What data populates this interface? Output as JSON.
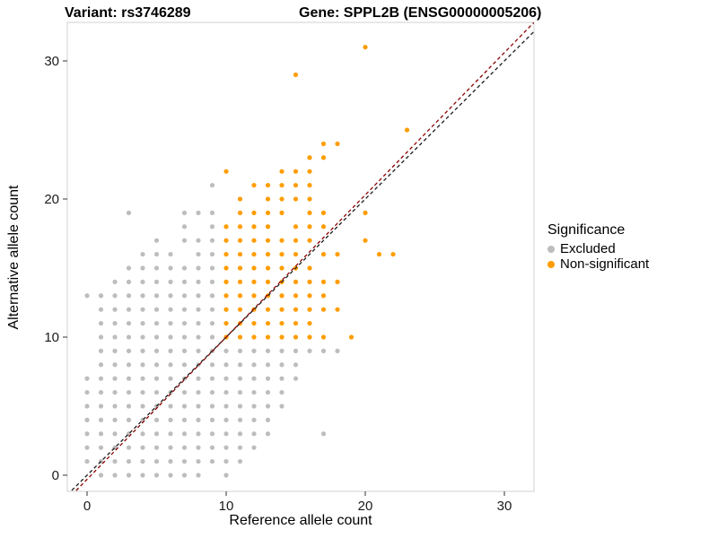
{
  "chart_data": {
    "type": "scatter",
    "title_left": "Variant: rs3746289",
    "title_right": "Gene: SPPL2B (ENSG00000005206)",
    "xlabel": "Reference allele count",
    "ylabel": "Alternative allele count",
    "xlim": [
      -1.42,
      32.13
    ],
    "ylim": [
      -1.17,
      32.79
    ],
    "x_ticks": [
      0,
      10,
      20,
      30
    ],
    "y_ticks": [
      0,
      10,
      20,
      30
    ],
    "grid": false,
    "legend_title": "Significance",
    "legend_position": "right",
    "panel_border_color": "#d0d0d0",
    "point_radius": 2.6,
    "series": [
      {
        "name": "Excluded",
        "color": "#BDBDBD",
        "points": [
          [
            1,
            0
          ],
          [
            2,
            0
          ],
          [
            3,
            0
          ],
          [
            4,
            0
          ],
          [
            5,
            0
          ],
          [
            6,
            0
          ],
          [
            7,
            0
          ],
          [
            8,
            0
          ],
          [
            10,
            0
          ],
          [
            0,
            1
          ],
          [
            1,
            1
          ],
          [
            2,
            1
          ],
          [
            3,
            1
          ],
          [
            4,
            1
          ],
          [
            5,
            1
          ],
          [
            6,
            1
          ],
          [
            7,
            1
          ],
          [
            8,
            1
          ],
          [
            9,
            1
          ],
          [
            10,
            1
          ],
          [
            11,
            1
          ],
          [
            0,
            2
          ],
          [
            1,
            2
          ],
          [
            2,
            2
          ],
          [
            3,
            2
          ],
          [
            4,
            2
          ],
          [
            5,
            2
          ],
          [
            6,
            2
          ],
          [
            7,
            2
          ],
          [
            8,
            2
          ],
          [
            9,
            2
          ],
          [
            10,
            2
          ],
          [
            11,
            2
          ],
          [
            12,
            2
          ],
          [
            0,
            3
          ],
          [
            1,
            3
          ],
          [
            2,
            3
          ],
          [
            3,
            3
          ],
          [
            4,
            3
          ],
          [
            5,
            3
          ],
          [
            6,
            3
          ],
          [
            7,
            3
          ],
          [
            8,
            3
          ],
          [
            9,
            3
          ],
          [
            10,
            3
          ],
          [
            11,
            3
          ],
          [
            12,
            3
          ],
          [
            13,
            3
          ],
          [
            17,
            3
          ],
          [
            0,
            4
          ],
          [
            1,
            4
          ],
          [
            2,
            4
          ],
          [
            3,
            4
          ],
          [
            4,
            4
          ],
          [
            5,
            4
          ],
          [
            6,
            4
          ],
          [
            7,
            4
          ],
          [
            8,
            4
          ],
          [
            9,
            4
          ],
          [
            10,
            4
          ],
          [
            11,
            4
          ],
          [
            12,
            4
          ],
          [
            13,
            4
          ],
          [
            0,
            5
          ],
          [
            1,
            5
          ],
          [
            2,
            5
          ],
          [
            3,
            5
          ],
          [
            4,
            5
          ],
          [
            5,
            5
          ],
          [
            6,
            5
          ],
          [
            7,
            5
          ],
          [
            8,
            5
          ],
          [
            9,
            5
          ],
          [
            10,
            5
          ],
          [
            11,
            5
          ],
          [
            12,
            5
          ],
          [
            13,
            5
          ],
          [
            14,
            5
          ],
          [
            0,
            6
          ],
          [
            1,
            6
          ],
          [
            2,
            6
          ],
          [
            3,
            6
          ],
          [
            4,
            6
          ],
          [
            5,
            6
          ],
          [
            6,
            6
          ],
          [
            7,
            6
          ],
          [
            8,
            6
          ],
          [
            9,
            6
          ],
          [
            10,
            6
          ],
          [
            11,
            6
          ],
          [
            12,
            6
          ],
          [
            13,
            6
          ],
          [
            14,
            6
          ],
          [
            0,
            7
          ],
          [
            1,
            7
          ],
          [
            2,
            7
          ],
          [
            3,
            7
          ],
          [
            4,
            7
          ],
          [
            5,
            7
          ],
          [
            6,
            7
          ],
          [
            7,
            7
          ],
          [
            8,
            7
          ],
          [
            9,
            7
          ],
          [
            10,
            7
          ],
          [
            11,
            7
          ],
          [
            12,
            7
          ],
          [
            13,
            7
          ],
          [
            14,
            7
          ],
          [
            15,
            7
          ],
          [
            1,
            8
          ],
          [
            2,
            8
          ],
          [
            3,
            8
          ],
          [
            4,
            8
          ],
          [
            5,
            8
          ],
          [
            6,
            8
          ],
          [
            7,
            8
          ],
          [
            8,
            8
          ],
          [
            9,
            8
          ],
          [
            10,
            8
          ],
          [
            11,
            8
          ],
          [
            12,
            8
          ],
          [
            13,
            8
          ],
          [
            14,
            8
          ],
          [
            15,
            8
          ],
          [
            1,
            9
          ],
          [
            2,
            9
          ],
          [
            3,
            9
          ],
          [
            4,
            9
          ],
          [
            5,
            9
          ],
          [
            6,
            9
          ],
          [
            7,
            9
          ],
          [
            8,
            9
          ],
          [
            9,
            9
          ],
          [
            10,
            9
          ],
          [
            11,
            9
          ],
          [
            12,
            9
          ],
          [
            13,
            9
          ],
          [
            14,
            9
          ],
          [
            15,
            9
          ],
          [
            16,
            9
          ],
          [
            17,
            9
          ],
          [
            18,
            9
          ],
          [
            1,
            10
          ],
          [
            2,
            10
          ],
          [
            3,
            10
          ],
          [
            4,
            10
          ],
          [
            5,
            10
          ],
          [
            6,
            10
          ],
          [
            7,
            10
          ],
          [
            8,
            10
          ],
          [
            9,
            10
          ],
          [
            1,
            11
          ],
          [
            2,
            11
          ],
          [
            3,
            11
          ],
          [
            4,
            11
          ],
          [
            5,
            11
          ],
          [
            6,
            11
          ],
          [
            7,
            11
          ],
          [
            8,
            11
          ],
          [
            9,
            11
          ],
          [
            1,
            12
          ],
          [
            2,
            12
          ],
          [
            3,
            12
          ],
          [
            4,
            12
          ],
          [
            5,
            12
          ],
          [
            6,
            12
          ],
          [
            7,
            12
          ],
          [
            8,
            12
          ],
          [
            9,
            12
          ],
          [
            0,
            13
          ],
          [
            1,
            13
          ],
          [
            2,
            13
          ],
          [
            3,
            13
          ],
          [
            4,
            13
          ],
          [
            5,
            13
          ],
          [
            6,
            13
          ],
          [
            7,
            13
          ],
          [
            8,
            13
          ],
          [
            9,
            13
          ],
          [
            2,
            14
          ],
          [
            3,
            14
          ],
          [
            4,
            14
          ],
          [
            5,
            14
          ],
          [
            6,
            14
          ],
          [
            7,
            14
          ],
          [
            8,
            14
          ],
          [
            9,
            14
          ],
          [
            3,
            15
          ],
          [
            4,
            15
          ],
          [
            5,
            15
          ],
          [
            6,
            15
          ],
          [
            7,
            15
          ],
          [
            8,
            15
          ],
          [
            9,
            15
          ],
          [
            4,
            16
          ],
          [
            5,
            16
          ],
          [
            6,
            16
          ],
          [
            8,
            16
          ],
          [
            9,
            16
          ],
          [
            5,
            17
          ],
          [
            7,
            17
          ],
          [
            8,
            17
          ],
          [
            9,
            17
          ],
          [
            7,
            18
          ],
          [
            9,
            18
          ],
          [
            3,
            19
          ],
          [
            7,
            19
          ],
          [
            8,
            19
          ],
          [
            9,
            19
          ],
          [
            9,
            21
          ]
        ]
      },
      {
        "name": "Non-significant",
        "color": "#FF9D00",
        "points": [
          [
            10,
            10
          ],
          [
            11,
            10
          ],
          [
            12,
            10
          ],
          [
            13,
            10
          ],
          [
            14,
            10
          ],
          [
            15,
            10
          ],
          [
            16,
            10
          ],
          [
            17,
            10
          ],
          [
            19,
            10
          ],
          [
            10,
            11
          ],
          [
            11,
            11
          ],
          [
            12,
            11
          ],
          [
            13,
            11
          ],
          [
            14,
            11
          ],
          [
            15,
            11
          ],
          [
            16,
            11
          ],
          [
            10,
            12
          ],
          [
            11,
            12
          ],
          [
            12,
            12
          ],
          [
            13,
            12
          ],
          [
            14,
            12
          ],
          [
            15,
            12
          ],
          [
            16,
            12
          ],
          [
            17,
            12
          ],
          [
            18,
            12
          ],
          [
            10,
            13
          ],
          [
            11,
            13
          ],
          [
            12,
            13
          ],
          [
            13,
            13
          ],
          [
            14,
            13
          ],
          [
            15,
            13
          ],
          [
            16,
            13
          ],
          [
            17,
            13
          ],
          [
            10,
            14
          ],
          [
            11,
            14
          ],
          [
            12,
            14
          ],
          [
            13,
            14
          ],
          [
            14,
            14
          ],
          [
            15,
            14
          ],
          [
            16,
            14
          ],
          [
            17,
            14
          ],
          [
            18,
            14
          ],
          [
            10,
            15
          ],
          [
            11,
            15
          ],
          [
            12,
            15
          ],
          [
            13,
            15
          ],
          [
            14,
            15
          ],
          [
            15,
            15
          ],
          [
            16,
            15
          ],
          [
            10,
            16
          ],
          [
            11,
            16
          ],
          [
            12,
            16
          ],
          [
            13,
            16
          ],
          [
            14,
            16
          ],
          [
            15,
            16
          ],
          [
            17,
            16
          ],
          [
            18,
            16
          ],
          [
            21,
            16
          ],
          [
            22,
            16
          ],
          [
            10,
            17
          ],
          [
            11,
            17
          ],
          [
            12,
            17
          ],
          [
            13,
            17
          ],
          [
            14,
            17
          ],
          [
            15,
            17
          ],
          [
            16,
            17
          ],
          [
            20,
            17
          ],
          [
            10,
            18
          ],
          [
            11,
            18
          ],
          [
            12,
            18
          ],
          [
            13,
            18
          ],
          [
            15,
            18
          ],
          [
            16,
            18
          ],
          [
            17,
            18
          ],
          [
            11,
            19
          ],
          [
            12,
            19
          ],
          [
            13,
            19
          ],
          [
            14,
            19
          ],
          [
            16,
            19
          ],
          [
            17,
            19
          ],
          [
            20,
            19
          ],
          [
            11,
            20
          ],
          [
            13,
            20
          ],
          [
            14,
            20
          ],
          [
            15,
            20
          ],
          [
            16,
            20
          ],
          [
            12,
            21
          ],
          [
            13,
            21
          ],
          [
            14,
            21
          ],
          [
            15,
            21
          ],
          [
            16,
            21
          ],
          [
            10,
            22
          ],
          [
            14,
            22
          ],
          [
            15,
            22
          ],
          [
            16,
            22
          ],
          [
            16,
            23
          ],
          [
            17,
            23
          ],
          [
            17,
            24
          ],
          [
            18,
            24
          ],
          [
            23,
            25
          ],
          [
            15,
            29
          ],
          [
            20,
            31
          ]
        ]
      }
    ],
    "reference_lines": [
      {
        "name": "identity",
        "slope": 1,
        "intercept": 0,
        "color": "#1a1a1a",
        "style": "dashed"
      },
      {
        "name": "fit",
        "slope": 1.03,
        "intercept": -0.3,
        "color": "#8B0000",
        "style": "dashed"
      }
    ]
  }
}
